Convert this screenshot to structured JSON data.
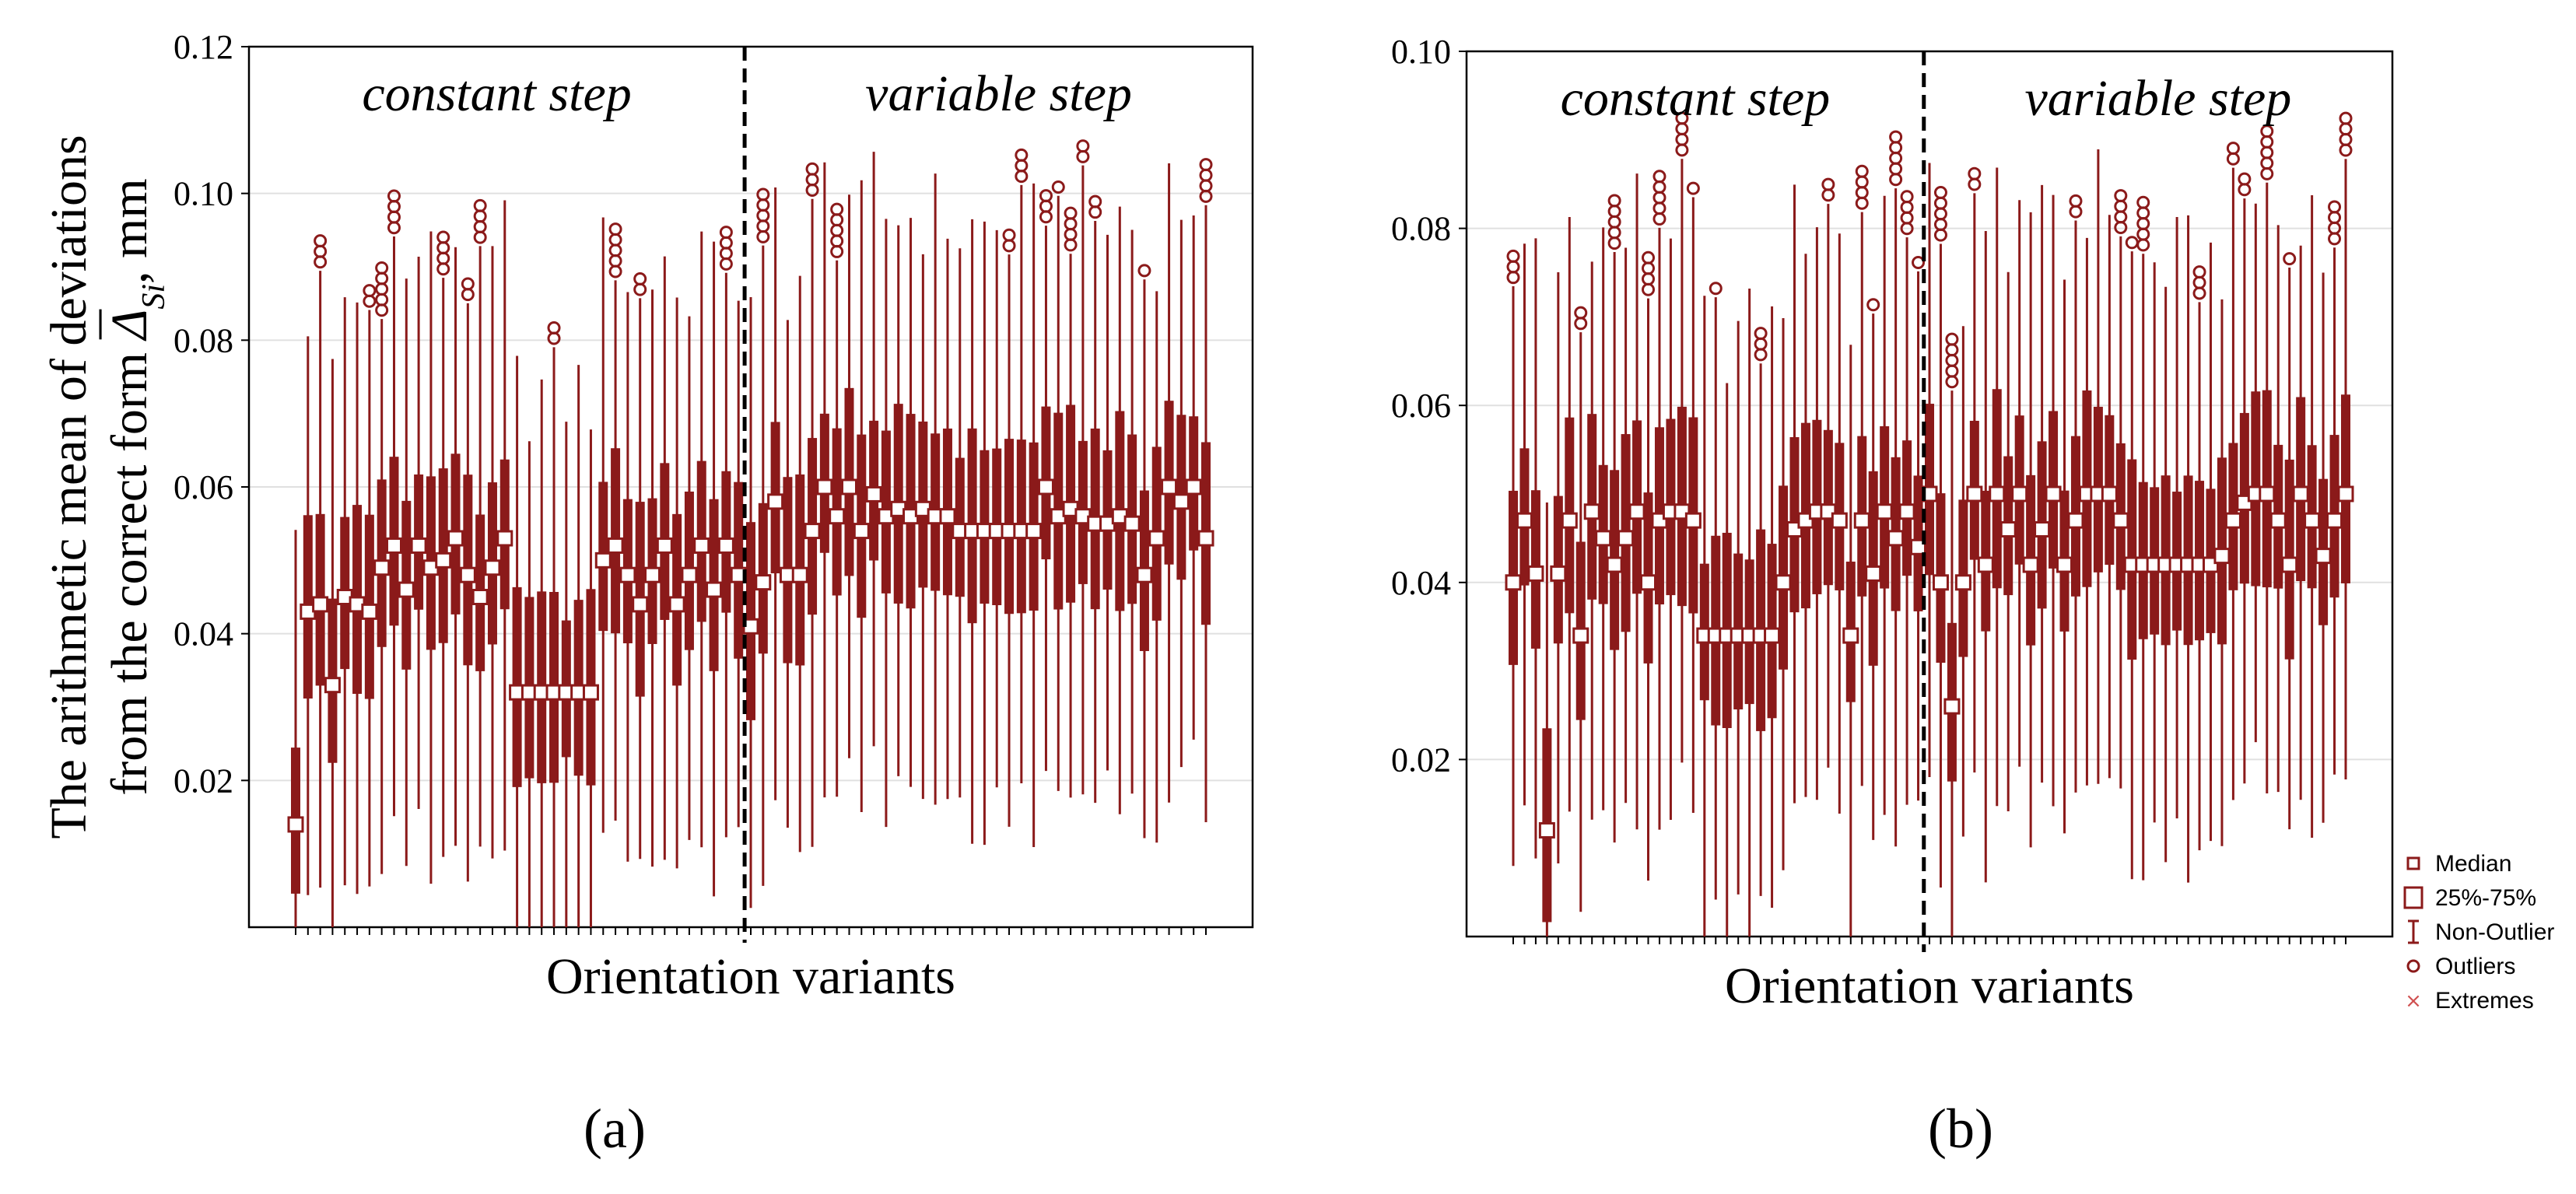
{
  "chart_data": [
    {
      "type": "boxplot",
      "panel": "(a)",
      "xlabel": "Orientation variants",
      "ylabel_line1": "The arithmetic mean of deviations",
      "ylabel_line2_prefix": "from the correct form ",
      "ylabel_symbol": "Δ",
      "ylabel_subscript": "Si",
      "ylabel_line2_suffix": ", mm",
      "ylim": [
        0,
        0.12
      ],
      "yticks": [
        0.02,
        0.04,
        0.06,
        0.08,
        0.1,
        0.12
      ],
      "ytick_labels": [
        "0.02",
        "0.04",
        "0.06",
        "0.08",
        "0.10",
        "0.12"
      ],
      "regions": [
        "constant step",
        "variable step"
      ],
      "divider_after_index": 36,
      "medians": [
        0.014,
        0.043,
        0.044,
        0.033,
        0.045,
        0.044,
        0.043,
        0.049,
        0.052,
        0.046,
        0.052,
        0.049,
        0.05,
        0.053,
        0.048,
        0.045,
        0.049,
        0.053,
        0.032,
        0.032,
        0.032,
        0.032,
        0.032,
        0.032,
        0.032,
        0.05,
        0.052,
        0.048,
        0.044,
        0.048,
        0.052,
        0.044,
        0.048,
        0.052,
        0.046,
        0.052,
        0.048,
        0.041,
        0.047,
        0.058,
        0.048,
        0.048,
        0.054,
        0.06,
        0.056,
        0.06,
        0.054,
        0.059,
        0.056,
        0.057,
        0.056,
        0.057,
        0.056,
        0.056,
        0.054,
        0.054,
        0.054,
        0.054,
        0.054,
        0.054,
        0.054,
        0.06,
        0.056,
        0.057,
        0.056,
        0.055,
        0.055,
        0.056,
        0.055,
        0.048,
        0.053,
        0.06,
        0.058,
        0.06,
        0.053
      ]
    },
    {
      "type": "boxplot",
      "panel": "(b)",
      "xlabel": "Orientation variants",
      "ylim": [
        0,
        0.1
      ],
      "yticks": [
        0.02,
        0.04,
        0.06,
        0.08,
        0.1
      ],
      "ytick_labels": [
        "0.02",
        "0.04",
        "0.06",
        "0.08",
        "0.10"
      ],
      "regions": [
        "constant step",
        "variable step"
      ],
      "divider_after_index": 36,
      "medians": [
        0.04,
        0.047,
        0.041,
        0.012,
        0.041,
        0.047,
        0.034,
        0.048,
        0.045,
        0.042,
        0.045,
        0.048,
        0.04,
        0.047,
        0.048,
        0.048,
        0.047,
        0.034,
        0.034,
        0.034,
        0.034,
        0.034,
        0.034,
        0.034,
        0.04,
        0.046,
        0.047,
        0.048,
        0.048,
        0.047,
        0.034,
        0.047,
        0.041,
        0.048,
        0.045,
        0.048,
        0.044,
        0.05,
        0.04,
        0.026,
        0.04,
        0.05,
        0.042,
        0.05,
        0.046,
        0.05,
        0.042,
        0.046,
        0.05,
        0.042,
        0.047,
        0.05,
        0.05,
        0.05,
        0.047,
        0.042,
        0.042,
        0.042,
        0.042,
        0.042,
        0.042,
        0.042,
        0.042,
        0.043,
        0.047,
        0.049,
        0.05,
        0.05,
        0.047,
        0.042,
        0.05,
        0.047,
        0.043,
        0.047,
        0.05
      ]
    }
  ],
  "legend": {
    "items": [
      {
        "label": "Median",
        "symbol": "small-square"
      },
      {
        "label": "25%-75%",
        "symbol": "square"
      },
      {
        "label": "Non-Outlier",
        "symbol": "whisker"
      },
      {
        "label": "Outliers",
        "symbol": "circle"
      },
      {
        "label": "Extremes",
        "symbol": "star"
      }
    ]
  },
  "colors": {
    "series": "#8B1A1A",
    "extreme": "#D05050",
    "axis": "#000000",
    "grid": "#e0e0e0"
  }
}
